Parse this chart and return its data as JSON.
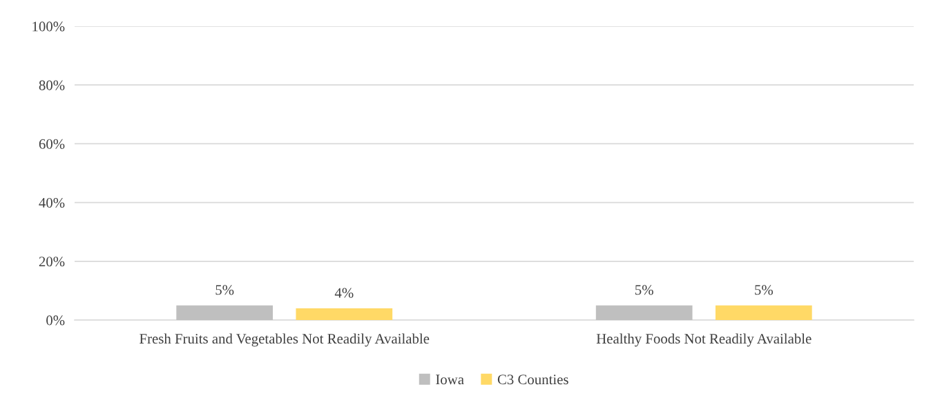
{
  "chart_data": {
    "type": "bar",
    "categories": [
      "Fresh Fruits and Vegetables Not Readily Available",
      "Healthy Foods Not Readily Available"
    ],
    "series": [
      {
        "name": "Iowa",
        "color": "#bfbfbf",
        "values": [
          5,
          5
        ],
        "value_labels": [
          "5%",
          "5%"
        ]
      },
      {
        "name": "C3 Counties",
        "color": "#ffd966",
        "values": [
          4,
          5
        ],
        "value_labels": [
          "4%",
          "5%"
        ]
      }
    ],
    "ylim": [
      0,
      100
    ],
    "yticks": [
      {
        "value": 0,
        "label": "0%"
      },
      {
        "value": 20,
        "label": "20%"
      },
      {
        "value": 40,
        "label": "40%"
      },
      {
        "value": 60,
        "label": "60%"
      },
      {
        "value": 80,
        "label": "80%"
      },
      {
        "value": 100,
        "label": "100%"
      }
    ],
    "grid": "y",
    "legend": "bottom"
  }
}
